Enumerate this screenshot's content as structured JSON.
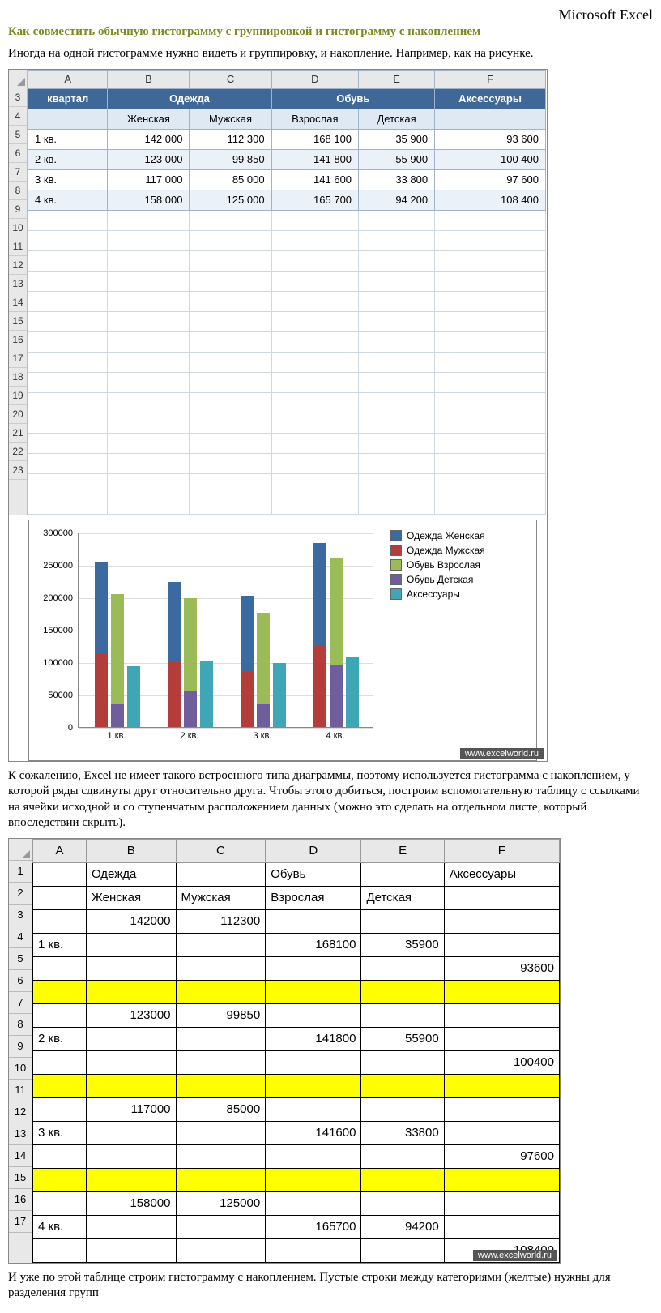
{
  "brand": "Microsoft Excel",
  "title": "Как совместить обычную гистограмму с группировкой и гистограмму с накоплением",
  "p1": "Иногда на одной гистограмме нужно видеть и группировку, и накопление. Например, как на рисунке.",
  "p2": "К сожалению, Excel не имеет такого встроенного типа диаграммы, поэтому используется гистограмма с накоплением, у которой ряды сдвинуты друг относительно друга. Чтобы этого добиться, построим вспомогательную таблицу с ссылками на ячейки исходной и со ступенчатым расположением данных (можно это сделать на отдельном листе, который впоследствии скрыть).",
  "p3": "И уже по этой таблице строим гистограмму с накоплением. Пустые строки между категориями (желтые) нужны для разделения групп",
  "wm": "www.excelworld.ru",
  "t1": {
    "cols": [
      "A",
      "B",
      "C",
      "D",
      "E",
      "F"
    ],
    "rownums": [
      "3",
      "4",
      "5",
      "6",
      "7",
      "8",
      "9",
      "10",
      "11",
      "12",
      "13",
      "14",
      "15",
      "16",
      "17",
      "18",
      "19",
      "20",
      "21",
      "22",
      "23"
    ],
    "h1": {
      "a": "квартал",
      "bc": "Одежда",
      "de": "Обувь",
      "f": "Аксессуары"
    },
    "h2": {
      "b": "Женская",
      "c": "Мужская",
      "d": "Взрослая",
      "e": "Детская"
    },
    "rows": [
      {
        "a": "1 кв.",
        "b": "142 000",
        "c": "112 300",
        "d": "168 100",
        "e": "35 900",
        "f": "93 600"
      },
      {
        "a": "2 кв.",
        "b": "123 000",
        "c": "99 850",
        "d": "141 800",
        "e": "55 900",
        "f": "100 400"
      },
      {
        "a": "3 кв.",
        "b": "117 000",
        "c": "85 000",
        "d": "141 600",
        "e": "33 800",
        "f": "97 600"
      },
      {
        "a": "4 кв.",
        "b": "158 000",
        "c": "125 000",
        "d": "165 700",
        "e": "94 200",
        "f": "108 400"
      }
    ]
  },
  "chart": {
    "type": "grouped-stacked-bar",
    "ymax": 300000,
    "ytick": 50000,
    "yticks": [
      "0",
      "50000",
      "100000",
      "150000",
      "200000",
      "250000",
      "300000"
    ],
    "xlabels": [
      "1 кв.",
      "2 кв.",
      "3 кв.",
      "4 кв."
    ],
    "colors": {
      "ow": "#3b6aa0",
      "om": "#b43c3a",
      "sv": "#9bbb59",
      "sd": "#6f5e9b",
      "ak": "#3fa6b5"
    },
    "legend": [
      "Одежда Женская",
      "Одежда Мужская",
      "Обувь Взрослая",
      "Обувь Детская",
      "Аксессуары"
    ],
    "groups": [
      {
        "b1": [
          142000,
          112300
        ],
        "b2": [
          168100,
          35900
        ],
        "b3": 93600
      },
      {
        "b1": [
          123000,
          99850
        ],
        "b2": [
          141800,
          55900
        ],
        "b3": 100400
      },
      {
        "b1": [
          117000,
          85000
        ],
        "b2": [
          141600,
          33800
        ],
        "b3": 97600
      },
      {
        "b1": [
          158000,
          125000
        ],
        "b2": [
          165700,
          94200
        ],
        "b3": 108400
      }
    ]
  },
  "t2": {
    "cols": [
      "A",
      "B",
      "C",
      "D",
      "E",
      "F"
    ],
    "rownums": [
      "1",
      "2",
      "3",
      "4",
      "5",
      "6",
      "7",
      "8",
      "9",
      "10",
      "11",
      "12",
      "13",
      "14",
      "15",
      "16",
      "17"
    ],
    "h1": {
      "b": "Одежда",
      "d": "Обувь",
      "f": "Аксессуары"
    },
    "h2": {
      "b": "Женская",
      "c": "Мужская",
      "d": "Взрослая",
      "e": "Детская"
    },
    "rows": [
      {
        "b": "142000",
        "c": "112300"
      },
      {
        "a": "1 кв.",
        "d": "168100",
        "e": "35900"
      },
      {
        "f": "93600"
      },
      {
        "yel": true
      },
      {
        "b": "123000",
        "c": "99850"
      },
      {
        "a": "2 кв.",
        "d": "141800",
        "e": "55900"
      },
      {
        "f": "100400"
      },
      {
        "yel": true
      },
      {
        "b": "117000",
        "c": "85000"
      },
      {
        "a": "3 кв.",
        "d": "141600",
        "e": "33800"
      },
      {
        "f": "97600"
      },
      {
        "yel": true
      },
      {
        "b": "158000",
        "c": "125000"
      },
      {
        "a": "4 кв.",
        "d": "165700",
        "e": "94200"
      },
      {
        "f": "108400"
      }
    ]
  }
}
